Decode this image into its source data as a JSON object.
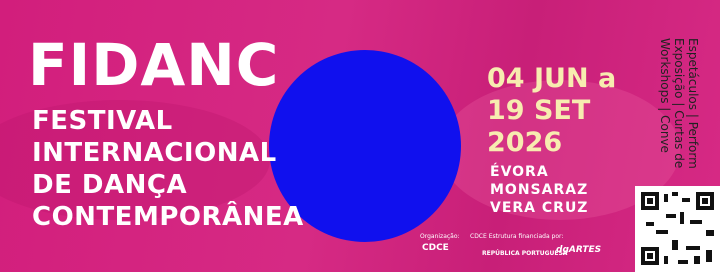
{
  "header": {
    "acronym": "FIDANC",
    "name_lines": [
      "FESTIVAL",
      "INTERNACIONAL",
      "DE DANÇA",
      "CONTEMPORÂNEA"
    ]
  },
  "dates": [
    "04 JUN a",
    "19 SET",
    "2026"
  ],
  "locations": [
    "ÉVORA",
    "MONSARAZ",
    "VERA CRUZ"
  ],
  "program_lines": [
    "Espetáculos | Perform",
    "Exposição | Curtas de",
    "Workshops | Conve"
  ],
  "footer": {
    "organization_label": "Organização:",
    "organizer": "CDCE",
    "funding_label": "CDCE Estrutura financiada por:",
    "funders": [
      "REPÚBLICA PORTUGUESA",
      "dgARTES"
    ]
  }
}
